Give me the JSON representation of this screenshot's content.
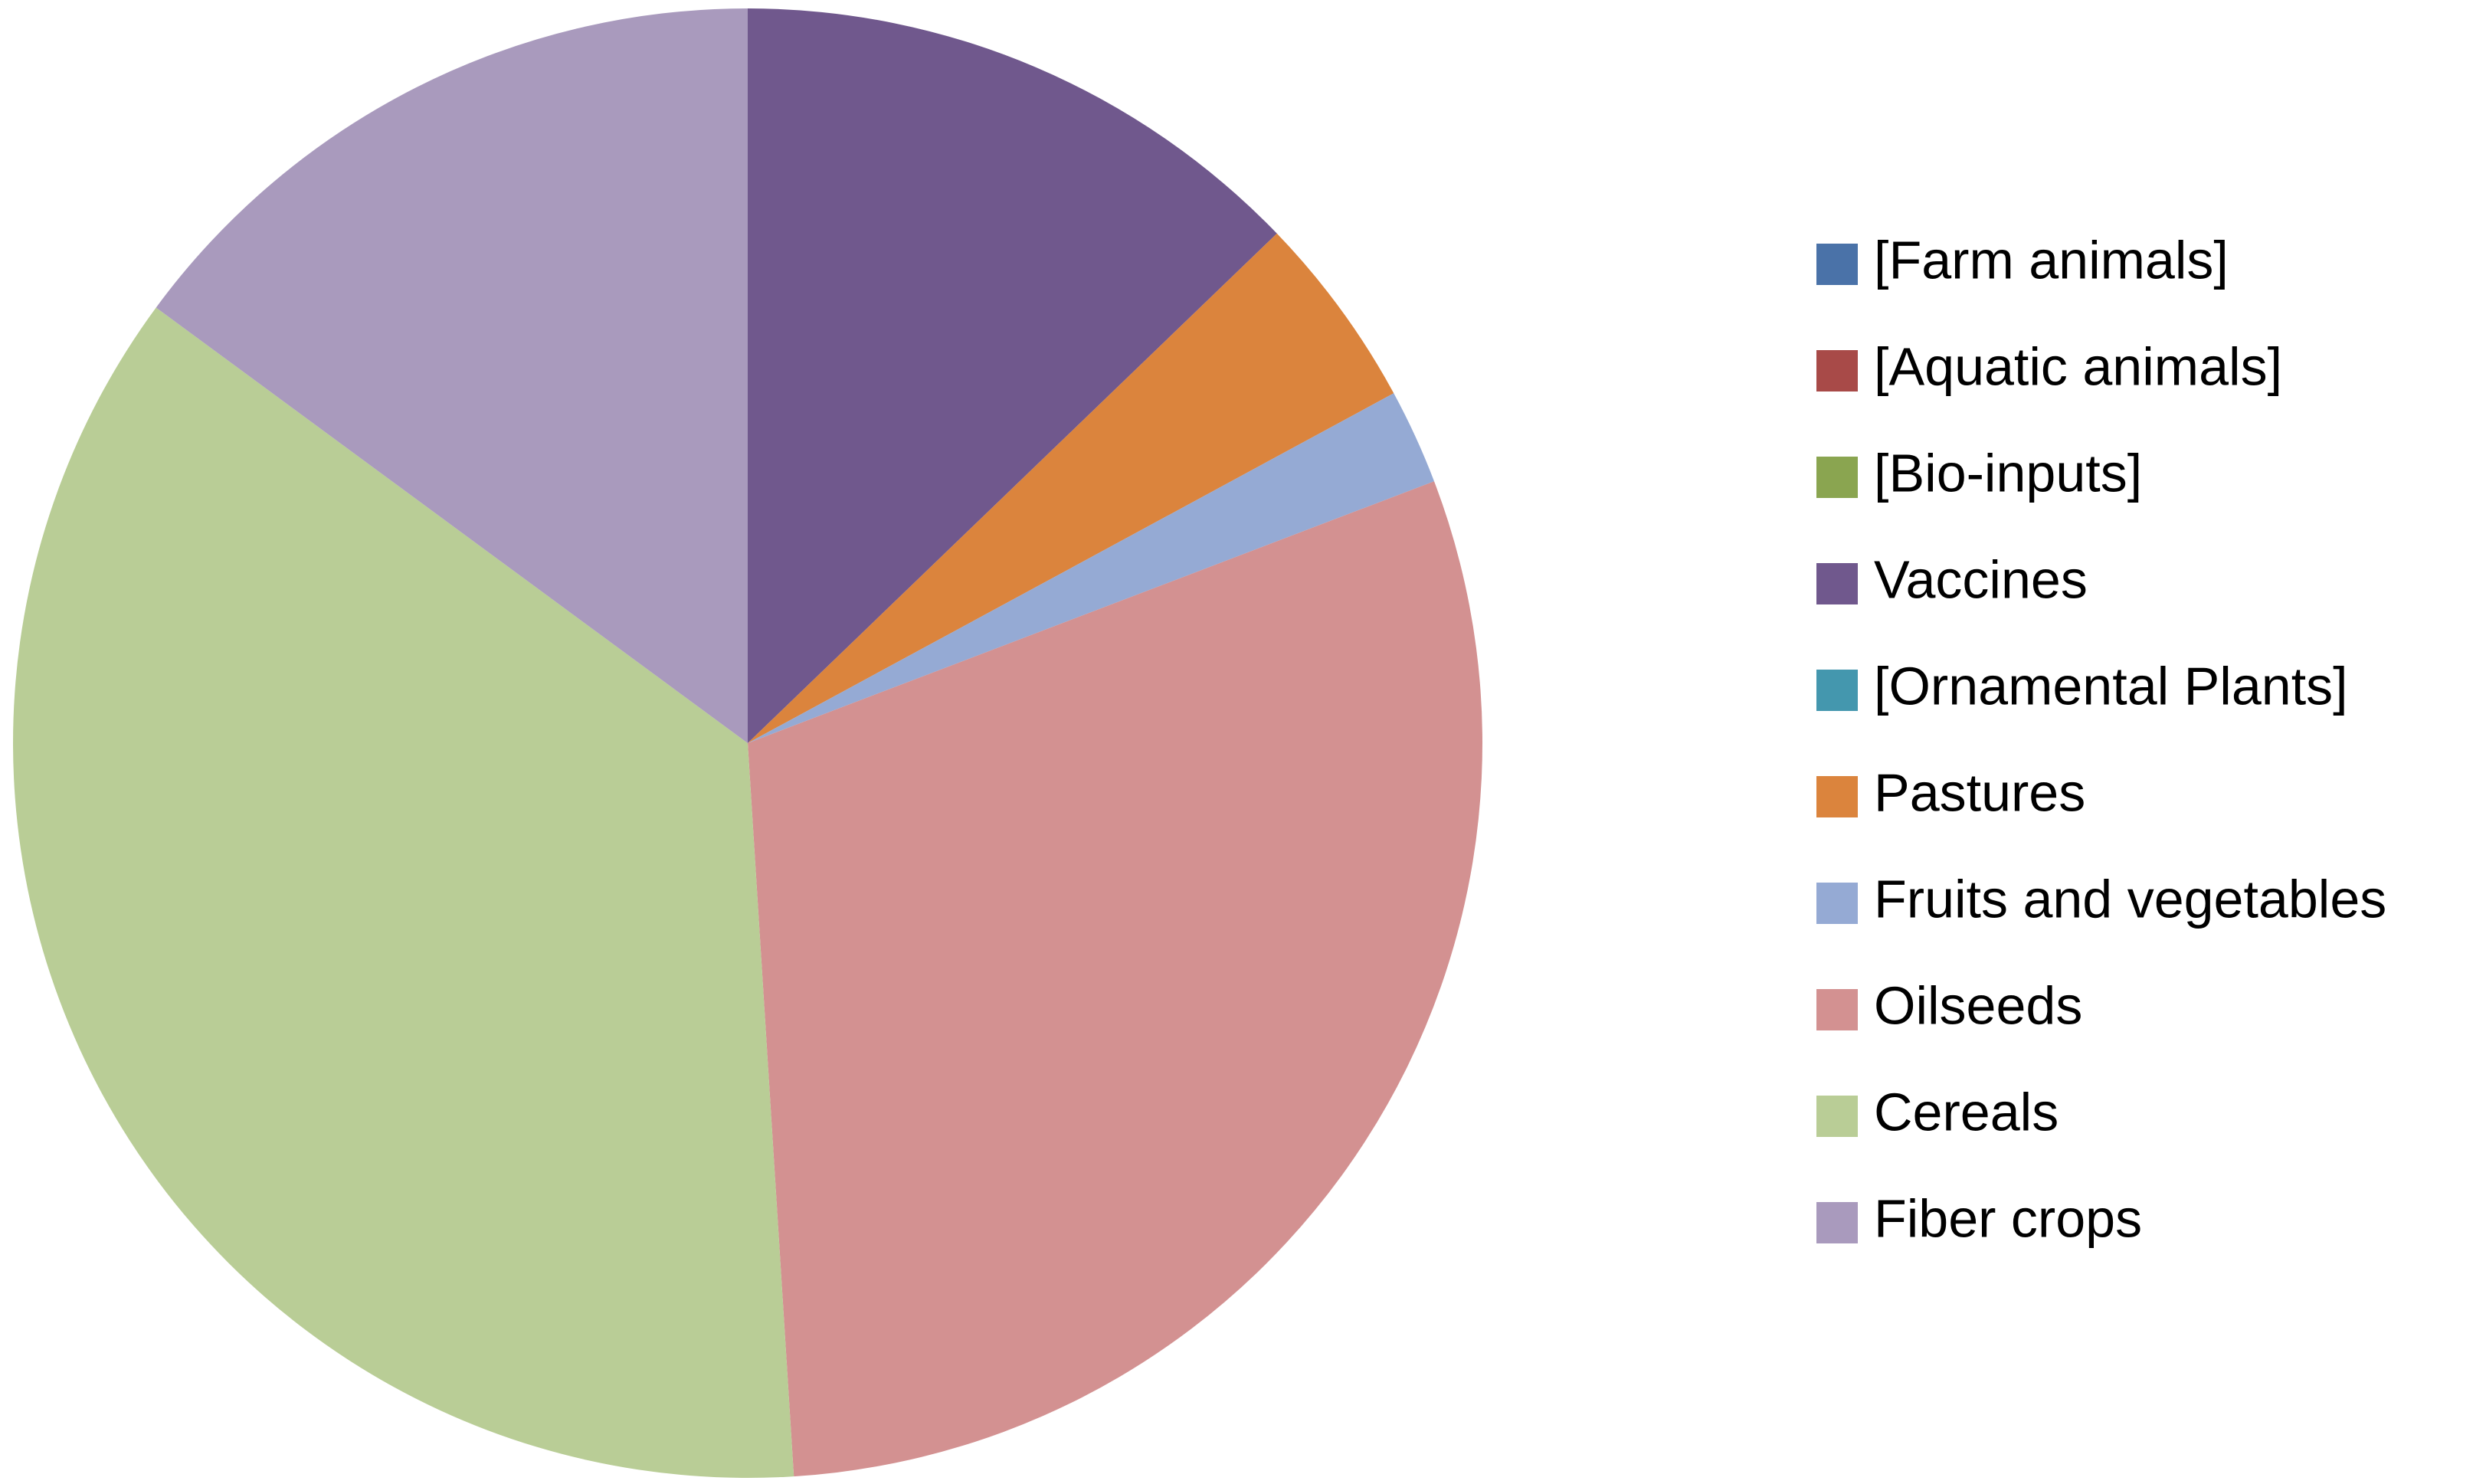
{
  "chart_data": {
    "type": "pie",
    "categories": [
      "[Farm animals]",
      "[Aquatic animals]",
      "[Bio-inputs]",
      "Vaccines",
      "[Ornamental Plants]",
      "Pastures",
      "Fruits and vegetables",
      "Oilseeds",
      "Cereals",
      "Fiber crops"
    ],
    "values": [
      0,
      0,
      0,
      12.8,
      0,
      4.3,
      2.1,
      29.8,
      36.1,
      14.9
    ],
    "colors": [
      "#4a72a8",
      "#a84a48",
      "#8aa550",
      "#70588d",
      "#4497ae",
      "#db843d",
      "#95aad4",
      "#d39191",
      "#b9cd96",
      "#a99abd"
    ],
    "legend": "right"
  }
}
